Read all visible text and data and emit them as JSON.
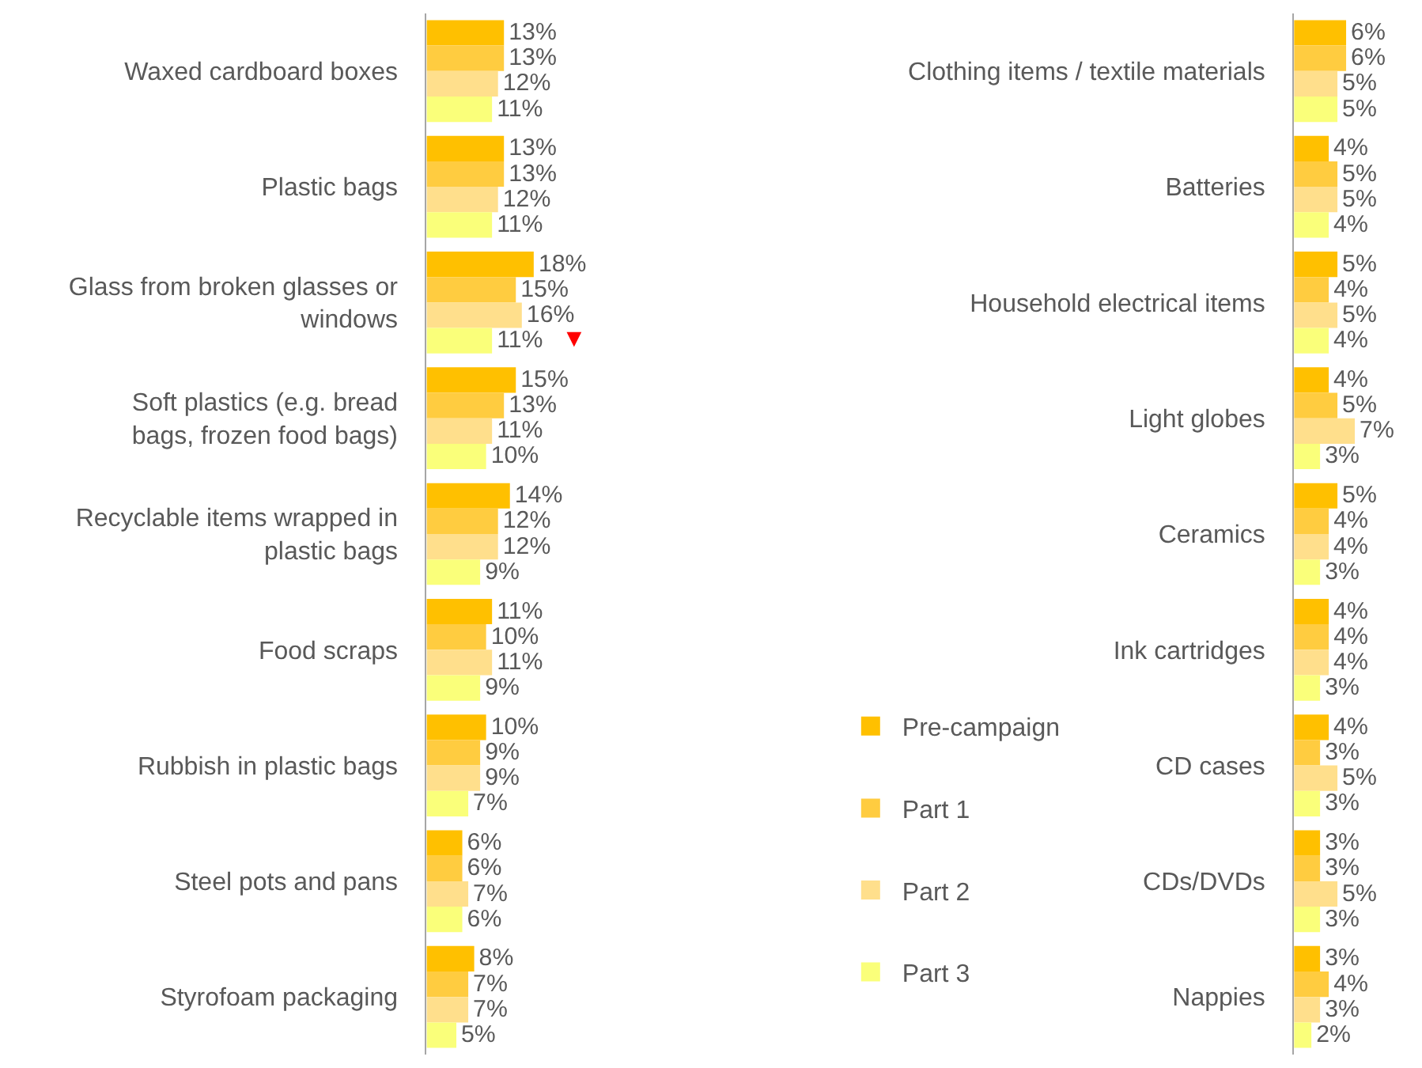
{
  "chart_data": [
    {
      "type": "bar",
      "orientation": "horizontal",
      "tick_labels": "y",
      "categories": [
        "Waxed cardboard boxes",
        "Plastic bags",
        "Glass from broken glasses or windows",
        "Soft plastics (e.g. bread bags, frozen food bags)",
        "Recyclable items wrapped in plastic bags",
        "Food scraps",
        "Rubbish in plastic bags",
        "Steel pots and pans",
        "Styrofoam packaging"
      ],
      "series": [
        {
          "color": "#ffc000",
          "values": [
            13,
            13,
            18,
            15,
            14,
            11,
            10,
            6,
            8
          ],
          "value_labels": [
            "13%",
            "13%",
            "18%",
            "15%",
            "14%",
            "11%",
            "10%",
            "6%",
            "8%"
          ]
        },
        {
          "color": "#ffcc40",
          "values": [
            13,
            13,
            15,
            13,
            12,
            10,
            9,
            6,
            7
          ],
          "value_labels": [
            "13%",
            "13%",
            "15%",
            "13%",
            "12%",
            "10%",
            "9%",
            "6%",
            "7%"
          ]
        },
        {
          "color": "#ffdf8c",
          "values": [
            12,
            12,
            16,
            11,
            12,
            11,
            9,
            7,
            7
          ],
          "value_labels": [
            "12%",
            "12%",
            "16%",
            "11%",
            "12%",
            "11%",
            "9%",
            "7%",
            "7%"
          ]
        },
        {
          "color": "#faff7a",
          "values": [
            11,
            11,
            11,
            10,
            9,
            9,
            7,
            6,
            5
          ],
          "value_labels": [
            "11%",
            "11%",
            "11%",
            "10%",
            "9%",
            "9%",
            "7%",
            "6%",
            "5%"
          ]
        }
      ],
      "annotations": [
        {
          "text": "▼",
          "x": 11,
          "y": "Glass from broken glasses or windows"
        }
      ]
    },
    {
      "type": "bar",
      "orientation": "horizontal",
      "tick_labels": "y",
      "legend": "left",
      "categories": [
        "Clothing items / textile materials",
        "Batteries",
        "Household electrical items",
        "Light globes",
        "Ceramics",
        "Ink cartridges",
        "CD cases",
        "CDs/DVDs",
        "Nappies"
      ],
      "series": [
        {
          "name": "Pre-campaign",
          "color": "#ffc000",
          "values": [
            6,
            4,
            5,
            4,
            5,
            4,
            4,
            3,
            3
          ],
          "value_labels": [
            "6%",
            "4%",
            "5%",
            "4%",
            "5%",
            "4%",
            "4%",
            "3%",
            "3%"
          ]
        },
        {
          "name": "Part 1",
          "color": "#ffcc40",
          "values": [
            6,
            5,
            4,
            5,
            4,
            4,
            3,
            3,
            4
          ],
          "value_labels": [
            "6%",
            "5%",
            "4%",
            "5%",
            "4%",
            "4%",
            "3%",
            "3%",
            "4%"
          ]
        },
        {
          "name": "Part 2",
          "color": "#ffdf8c",
          "values": [
            5,
            5,
            5,
            7,
            4,
            4,
            5,
            5,
            3
          ],
          "value_labels": [
            "5%",
            "5%",
            "5%",
            "7%",
            "4%",
            "4%",
            "5%",
            "5%",
            "3%"
          ]
        },
        {
          "name": "Part 3",
          "color": "#faff7a",
          "values": [
            5,
            4,
            4,
            3,
            3,
            3,
            3,
            3,
            2
          ],
          "value_labels": [
            "5%",
            "4%",
            "4%",
            "3%",
            "3%",
            "3%",
            "3%",
            "3%",
            "2%"
          ]
        }
      ]
    }
  ]
}
